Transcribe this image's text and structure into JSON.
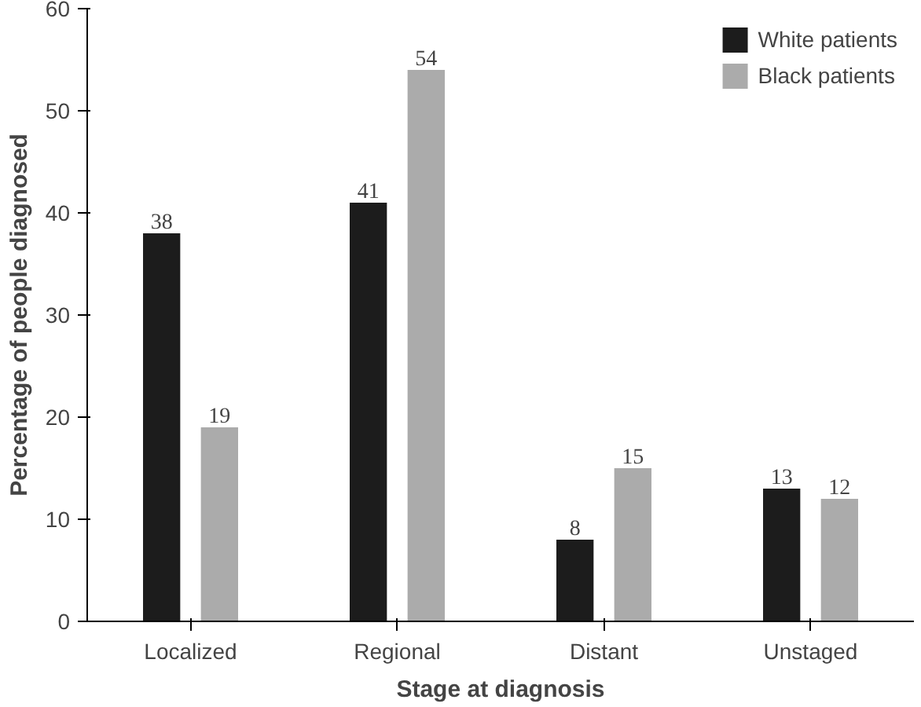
{
  "chart_data": {
    "type": "bar",
    "xlabel": "Stage at diagnosis",
    "ylabel": "Percentage of people diagnosed",
    "categories": [
      "Localized",
      "Regional",
      "Distant",
      "Unstaged"
    ],
    "series": [
      {
        "name": "White patients",
        "color": "#1c1c1c",
        "values": [
          38,
          41,
          8,
          13
        ]
      },
      {
        "name": "Black patients",
        "color": "#ababab",
        "values": [
          19,
          54,
          15,
          12
        ]
      }
    ],
    "ylim": [
      0,
      60
    ],
    "yticks": [
      0,
      10,
      20,
      30,
      40,
      50,
      60
    ],
    "data_labels": true,
    "grid": false,
    "legend": "top right"
  }
}
